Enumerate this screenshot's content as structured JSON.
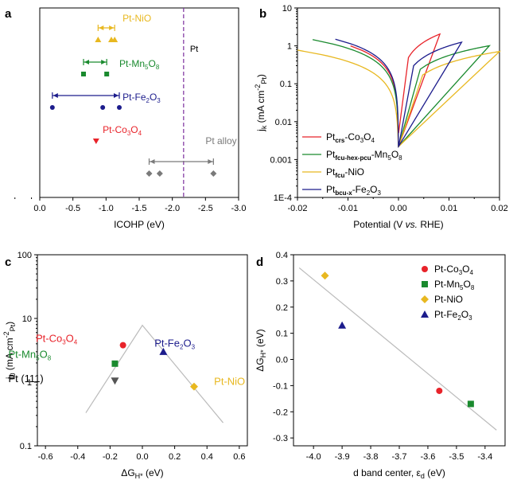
{
  "colors": {
    "co3o4": "#e8232a",
    "mn5o8": "#1a8a2e",
    "nio": "#e8b820",
    "fe2o3": "#1c1c8c",
    "pt": "#7b2f9e",
    "ptalloy": "#7a7a7a",
    "fit": "#bbbbbb",
    "pt111": "#555555"
  },
  "chart_data": [
    {
      "panel": "a",
      "type": "scatter",
      "xlabel": "ICOHP (eV)",
      "xlim": [
        0.0,
        -3.0
      ],
      "xticks": [
        "0.0",
        "-0.5",
        "-1.0",
        "-1.5",
        "-2.0",
        "-2.5",
        "-3.0"
      ],
      "pt_line": {
        "label": "Pt",
        "x": -2.17
      },
      "groups": [
        {
          "name": "Pt-NiO",
          "label_main": "Pt-NiO",
          "label_sub": "",
          "label_tail": "",
          "marker": "triangle-up",
          "color_key": "nio",
          "row": 1,
          "x": [
            -0.88,
            -1.08,
            -1.13
          ],
          "range": [
            -0.88,
            -1.13
          ]
        },
        {
          "name": "Pt-Mn5O8",
          "label_main": "Pt-Mn",
          "label_sub": "5",
          "label_tail": "O",
          "label_sub2": "8",
          "marker": "square",
          "color_key": "mn5o8",
          "row": 2,
          "x": [
            -0.66,
            -1.01
          ],
          "range": [
            -0.66,
            -1.01
          ]
        },
        {
          "name": "Pt-Fe2O3",
          "label_main": "Pt-Fe",
          "label_sub": "2",
          "label_tail": "O",
          "label_sub2": "3",
          "marker": "circle",
          "color_key": "fe2o3",
          "row": 3,
          "x": [
            -0.19,
            -0.95,
            -1.2
          ],
          "range": [
            -0.19,
            -1.2
          ]
        },
        {
          "name": "Pt-Co3O4",
          "label_main": "Pt-Co",
          "label_sub": "3",
          "label_tail": "O",
          "label_sub2": "4",
          "marker": "triangle-down",
          "color_key": "co3o4",
          "row": 4,
          "x": [
            -0.85
          ],
          "range": null
        },
        {
          "name": "Pt alloy",
          "label_main": "Pt alloy",
          "label_sub": "",
          "label_tail": "",
          "marker": "diamond",
          "color_key": "ptalloy",
          "row": 5,
          "x": [
            -1.65,
            -1.81,
            -2.62
          ],
          "range": [
            -1.65,
            -2.62
          ]
        }
      ]
    },
    {
      "panel": "b",
      "type": "line",
      "xlabel": "Potential (V vs. RHE)",
      "xlabel_main": "Potential (V ",
      "xlabel_ital": "vs.",
      "xlabel_tail": " RHE)",
      "ylabel": "jk (mA cm-2Pt)",
      "xlim": [
        -0.02,
        0.02
      ],
      "ylim": [
        0.0001,
        10
      ],
      "yscale": "log",
      "xticks": [
        "-0.02",
        "-0.01",
        "0.00",
        "0.01",
        "0.02"
      ],
      "yticks": [
        "1E-4",
        "0.001",
        "0.01",
        "0.1",
        "1",
        "10"
      ],
      "series": [
        {
          "name": "Ptcrs-Co3O4",
          "legend_sub": "crs",
          "legend_tail": "-Co",
          "legend_s2": "3",
          "legend_t2": "O",
          "legend_s3": "4",
          "color_key": "co3o4",
          "x_range": [
            -0.0095,
            0.0082
          ],
          "k_neg": 105,
          "k_pos": 250
        },
        {
          "name": "Ptfcu-hex-pcu-Mn5O8",
          "legend_sub": "fcu-hex-pcu",
          "legend_tail": "-Mn",
          "legend_s2": "5",
          "legend_t2": "O",
          "legend_s3": "8",
          "color_key": "mn5o8",
          "x_range": [
            -0.017,
            0.018
          ],
          "k_neg": 86,
          "k_pos": 56
        },
        {
          "name": "Ptfcu-NiO",
          "legend_sub": "fcu",
          "legend_tail": "-NiO",
          "legend_s2": "",
          "legend_t2": "",
          "legend_s3": "",
          "color_key": "nio",
          "x_range": [
            -0.02,
            0.02
          ],
          "k_neg": 38.6,
          "k_pos": 35.5
        },
        {
          "name": "Ptbcu-x-Fe2O3",
          "legend_sub": "bcu-x",
          "legend_tail": "-Fe",
          "legend_s2": "2",
          "legend_t2": "O",
          "legend_s3": "3",
          "color_key": "fe2o3",
          "x_range": [
            -0.0125,
            0.0125
          ],
          "k_neg": 120,
          "k_pos": 100
        }
      ]
    },
    {
      "panel": "c",
      "type": "scatter",
      "xlabel": "ΔGH* (eV)",
      "ylabel": "j0 (mA cm-2Pt)",
      "xlim": [
        -0.65,
        0.65
      ],
      "ylim": [
        0.1,
        100
      ],
      "yscale": "log",
      "xticks": [
        "-0.6",
        "-0.4",
        "-0.2",
        "0.0",
        "0.2",
        "0.4",
        "0.6"
      ],
      "yticks": [
        "0.1",
        "1",
        "10",
        "100"
      ],
      "volcano": {
        "x": [
          -0.35,
          0.0,
          0.5
        ],
        "y": [
          0.33,
          7.8,
          0.23
        ]
      },
      "points": [
        {
          "name": "Pt-Co3O4",
          "x": -0.12,
          "y": 3.8,
          "marker": "circle",
          "color_key": "co3o4",
          "lbl_main": "Pt-Co",
          "lbl_s1": "3",
          "lbl_t1": "O",
          "lbl_s2": "4"
        },
        {
          "name": "Pt-Mn5O8",
          "x": -0.17,
          "y": 1.95,
          "marker": "square",
          "color_key": "mn5o8",
          "lbl_main": "Pt-Mn",
          "lbl_s1": "5",
          "lbl_t1": "O",
          "lbl_s2": "8"
        },
        {
          "name": "Pt (111)",
          "x": -0.17,
          "y": 1.05,
          "marker": "triangle-down",
          "color_key": "pt111",
          "lbl_main": "Pt (111)",
          "lbl_s1": "",
          "lbl_t1": "",
          "lbl_s2": ""
        },
        {
          "name": "Pt-Fe2O3",
          "x": 0.13,
          "y": 3.0,
          "marker": "triangle-up",
          "color_key": "fe2o3",
          "lbl_main": "Pt-Fe",
          "lbl_s1": "2",
          "lbl_t1": "O",
          "lbl_s2": "3"
        },
        {
          "name": "Pt-NiO",
          "x": 0.32,
          "y": 0.85,
          "marker": "diamond",
          "color_key": "nio",
          "lbl_main": "Pt-NiO",
          "lbl_s1": "",
          "lbl_t1": "",
          "lbl_s2": ""
        }
      ]
    },
    {
      "panel": "d",
      "type": "scatter",
      "xlabel": "d band center, εd (eV)",
      "ylabel": "ΔGH* (eV)",
      "xlim": [
        -4.07,
        -3.33
      ],
      "ylim": [
        -0.33,
        0.4
      ],
      "xticks": [
        "-4.0",
        "-3.9",
        "-3.8",
        "-3.7",
        "-3.6",
        "-3.5",
        "-3.4"
      ],
      "yticks": [
        "-0.3",
        "-0.2",
        "-0.1",
        "0.0",
        "0.1",
        "0.2",
        "0.3",
        "0.4"
      ],
      "fit": {
        "x": [
          -4.05,
          -3.36
        ],
        "y": [
          0.35,
          -0.27
        ]
      },
      "points": [
        {
          "name": "Pt-Co3O4",
          "x": -3.56,
          "y": -0.12,
          "marker": "circle",
          "color_key": "co3o4",
          "lbl_main": "Pt-Co",
          "lbl_s1": "3",
          "lbl_t1": "O",
          "lbl_s2": "4"
        },
        {
          "name": "Pt-Mn5O8",
          "x": -3.45,
          "y": -0.17,
          "marker": "square",
          "color_key": "mn5o8",
          "lbl_main": "Pt-Mn",
          "lbl_s1": "5",
          "lbl_t1": "O",
          "lbl_s2": "8"
        },
        {
          "name": "Pt-NiO",
          "x": -3.96,
          "y": 0.32,
          "marker": "diamond",
          "color_key": "nio",
          "lbl_main": "Pt-NiO",
          "lbl_s1": "",
          "lbl_t1": "",
          "lbl_s2": ""
        },
        {
          "name": "Pt-Fe2O3",
          "x": -3.9,
          "y": 0.13,
          "marker": "triangle-up",
          "color_key": "fe2o3",
          "lbl_main": "Pt-Fe",
          "lbl_s1": "2",
          "lbl_t1": "O",
          "lbl_s2": "3"
        }
      ]
    }
  ],
  "panel_letters": [
    "a",
    "b",
    "c",
    "d"
  ],
  "axis_text": {
    "b_ylabel_main": "j",
    "b_ylabel_sub": "k",
    "b_ylabel_tail": " (mA cm",
    "b_ylabel_sup": "-2",
    "b_ylabel_sub2": "Pt",
    "b_ylabel_close": ")",
    "c_ylabel_main": "j",
    "c_ylabel_sub": "0",
    "c_ylabel_tail": " (mA cm",
    "c_ylabel_sup": "-2",
    "c_ylabel_sub2": "Pt",
    "c_ylabel_close": ")",
    "c_xlabel_main": "ΔG",
    "c_xlabel_sub": "H*",
    "c_xlabel_tail": " (eV)",
    "d_ylabel_main": "ΔG",
    "d_ylabel_sub": "H*",
    "d_ylabel_tail": " (eV)",
    "d_xlabel_main": "d band center, ε",
    "d_xlabel_sub": "d",
    "d_xlabel_tail": " (eV)",
    "legend_pt": "Pt"
  }
}
